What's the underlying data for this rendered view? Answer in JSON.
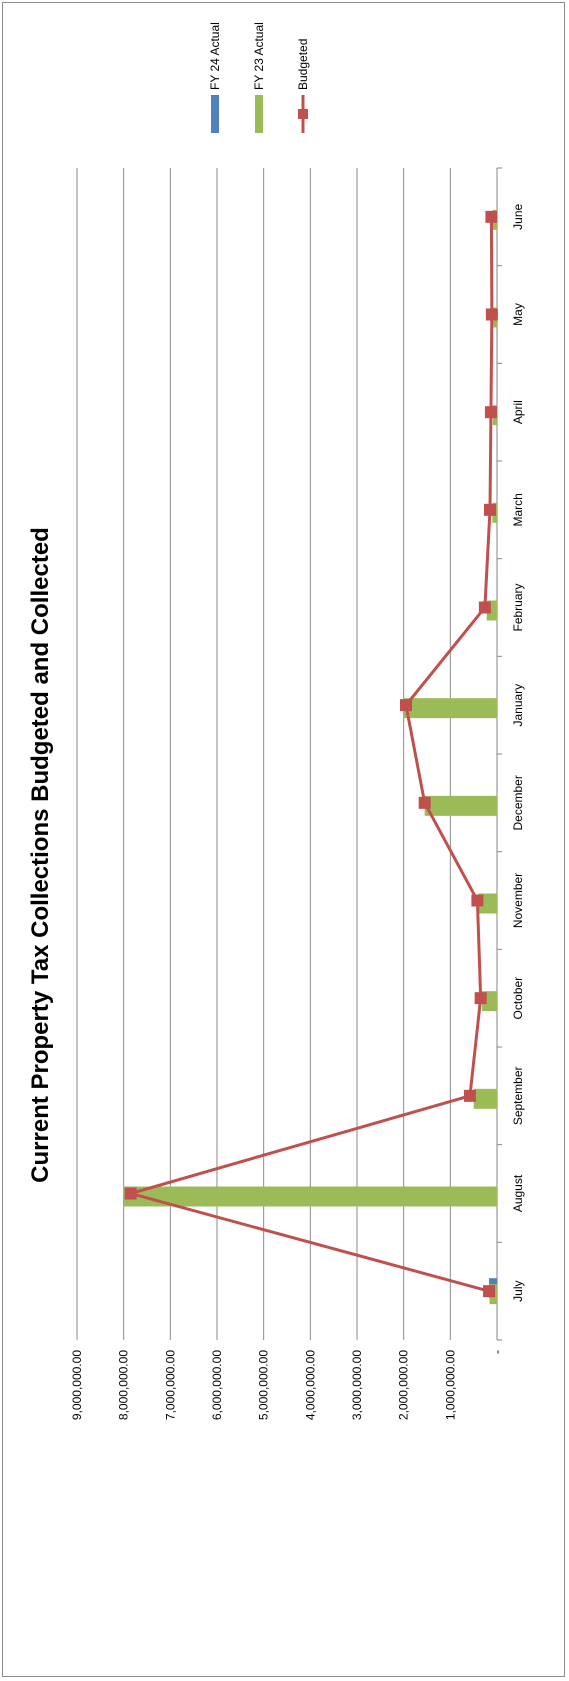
{
  "chart_data": {
    "type": "bar",
    "title": "Current Property Tax Collections Budgeted and Collected",
    "xlabel": "",
    "ylabel": "",
    "orientation": "rotated-90-clockwise",
    "categories": [
      "July",
      "August",
      "September",
      "October",
      "November",
      "December",
      "January",
      "February",
      "March",
      "April",
      "May",
      "June"
    ],
    "ylim": [
      0,
      9000000
    ],
    "yticks": [
      0,
      1000000,
      2000000,
      3000000,
      4000000,
      5000000,
      6000000,
      7000000,
      8000000,
      9000000
    ],
    "ytick_labels": [
      "-",
      "1,000,000.00",
      "2,000,000.00",
      "3,000,000.00",
      "4,000,000.00",
      "5,000,000.00",
      "6,000,000.00",
      "7,000,000.00",
      "8,000,000.00",
      "9,000,000.00"
    ],
    "grid": true,
    "legend_position": "right",
    "series": [
      {
        "name": "FY 24 Actual",
        "kind": "bar",
        "color": "#4f81bd",
        "values": [
          170000,
          null,
          null,
          null,
          null,
          null,
          null,
          null,
          null,
          null,
          null,
          null
        ]
      },
      {
        "name": "FY 23 Actual",
        "kind": "bar",
        "color": "#9bbb59",
        "values": [
          160000,
          8000000,
          500000,
          320000,
          400000,
          1550000,
          2000000,
          220000,
          100000,
          90000,
          80000,
          90000
        ]
      },
      {
        "name": "Budgeted",
        "kind": "line",
        "color": "#c0504d",
        "values": [
          170000,
          7850000,
          580000,
          350000,
          420000,
          1550000,
          1950000,
          260000,
          150000,
          130000,
          110000,
          120000
        ]
      }
    ]
  }
}
